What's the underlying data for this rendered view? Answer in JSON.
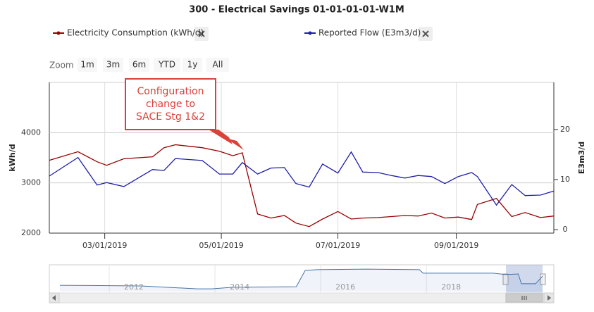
{
  "chart_data": {
    "type": "line",
    "title": "300 - Electrical Savings 01-01-01-01-W1M",
    "y_label": "kWh/d",
    "y2_label": "E3m3/d",
    "zoom": {
      "label": "Zoom",
      "buttons": [
        "1m",
        "3m",
        "6m",
        "YTD",
        "1y",
        "All"
      ]
    },
    "annotation": {
      "lines": [
        "Configuration",
        "change to",
        "SACE Stg 1&2"
      ]
    },
    "x": [
      "01/31/2019",
      "02/15/2019",
      "02/25/2019",
      "03/02/2019",
      "03/11/2019",
      "03/26/2019",
      "04/01/2019",
      "04/07/2019",
      "04/21/2019",
      "04/30/2019",
      "05/07/2019",
      "05/12/2019",
      "05/20/2019",
      "05/27/2019",
      "06/03/2019",
      "06/09/2019",
      "06/16/2019",
      "06/23/2019",
      "07/01/2019",
      "07/08/2019",
      "07/14/2019",
      "07/22/2019",
      "07/29/2019",
      "08/05/2019",
      "08/12/2019",
      "08/19/2019",
      "08/26/2019",
      "09/02/2019",
      "09/09/2019",
      "09/12/2019",
      "09/22/2019",
      "09/30/2019",
      "10/07/2019",
      "10/15/2019",
      "10/22/2019"
    ],
    "xlim": [
      "01/31/2019",
      "10/22/2019"
    ],
    "xticks": [
      "03/01/2019",
      "05/01/2019",
      "07/01/2019",
      "09/01/2019"
    ],
    "ylim": [
      2000,
      5000
    ],
    "yticks": [
      2000,
      3000,
      4000
    ],
    "y2lim": [
      -0.7,
      29.4
    ],
    "y2ticks": [
      0,
      10,
      20
    ],
    "grid": true,
    "series": [
      {
        "name": "Electricity Consumption (kWh/d)",
        "color": "#990000",
        "axis": "y",
        "values": [
          3450,
          3620,
          3420,
          3350,
          3480,
          3520,
          3700,
          3760,
          3700,
          3630,
          3540,
          3600,
          2380,
          2300,
          2350,
          2200,
          2130,
          2280,
          2430,
          2280,
          2300,
          2310,
          2330,
          2350,
          2340,
          2400,
          2300,
          2320,
          2270,
          2570,
          2690,
          2330,
          2410,
          2310,
          2340
        ]
      },
      {
        "name": "Reported Flow (E3m3/d)",
        "color": "#1f1fa8",
        "axis": "y2",
        "values": [
          10.7,
          14.4,
          8.9,
          9.4,
          8.6,
          12.0,
          11.8,
          14.2,
          13.8,
          11.1,
          11.1,
          13.4,
          11.1,
          12.3,
          12.4,
          9.2,
          8.5,
          13.1,
          11.3,
          15.5,
          11.5,
          11.4,
          10.8,
          10.3,
          10.8,
          10.6,
          9.2,
          10.6,
          11.4,
          10.6,
          4.9,
          9.0,
          6.8,
          6.9,
          7.7
        ]
      }
    ],
    "navigator": {
      "x": [
        2010.6,
        2012.13,
        2013.2,
        2013.47,
        2013.87,
        2015.07,
        2015.24,
        2015.47,
        2016.4,
        2017.4,
        2017.47,
        2018.8,
        2019.04,
        2019.27,
        2019.33,
        2019.6,
        2019.73
      ],
      "values": [
        4.1,
        3.7,
        1.8,
        1.8,
        2.8,
        3.2,
        13.8,
        14.3,
        14.7,
        14.3,
        12.0,
        12.0,
        11.1,
        11.5,
        5.1,
        5.1,
        10.1
      ],
      "xlim": [
        2010.6,
        2019.73
      ],
      "xticks": [
        2012,
        2014,
        2016,
        2018
      ],
      "ylim": [
        0,
        17.5
      ]
    }
  }
}
